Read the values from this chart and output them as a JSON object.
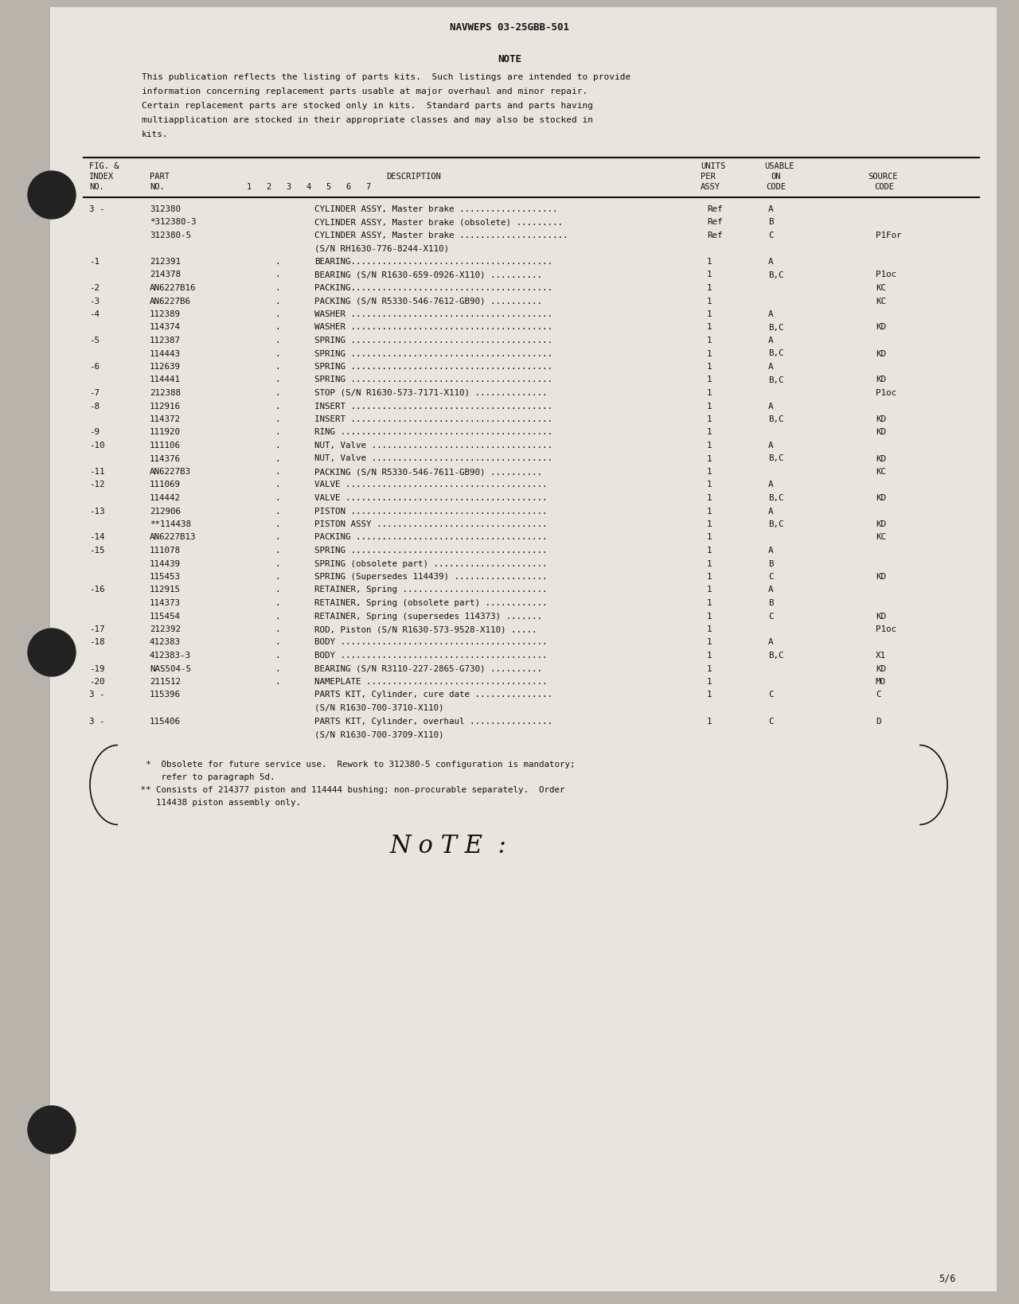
{
  "header_title": "NAVWEPS 03-25GBB-501",
  "note_title": "NOTE",
  "note_text_lines": [
    "This publication reflects the listing of parts kits.  Such listings are intended to provide",
    "information concerning replacement parts usable at major overhaul and minor repair.",
    "Certain replacement parts are stocked only in kits.  Standard parts and parts having",
    "multiapplication are stocked in their appropriate classes and may also be stocked in",
    "kits."
  ],
  "table_rows": [
    [
      "3 -",
      "312380",
      "",
      "CYLINDER ASSY, Master brake ...................",
      "Ref",
      "A",
      "",
      false
    ],
    [
      "",
      "*312380-3",
      "",
      "CYLINDER ASSY, Master brake (obsolete) .........",
      "Ref",
      "B",
      "",
      false
    ],
    [
      "",
      "312380-5",
      "",
      "CYLINDER ASSY, Master brake .....................",
      "Ref",
      "C",
      "P1For",
      false
    ],
    [
      "",
      "",
      "",
      "(S/N RH1630-776-8244-X110)",
      "",
      "",
      "",
      true
    ],
    [
      "-1",
      "212391",
      ".",
      "BEARING.......................................",
      "1",
      "A",
      "",
      false
    ],
    [
      "",
      "214378",
      ".",
      "BEARING (S/N R1630-659-0926-X110) ..........",
      "1",
      "B,C",
      "P1oc",
      false
    ],
    [
      "-2",
      "AN6227B16",
      ".",
      "PACKING.......................................",
      "1",
      "",
      "KC",
      false
    ],
    [
      "-3",
      "AN6227B6",
      ".",
      "PACKING (S/N R5330-546-7612-GB90) ..........",
      "1",
      "",
      "KC",
      false
    ],
    [
      "-4",
      "112389",
      ".",
      "WASHER .......................................",
      "1",
      "A",
      "",
      false
    ],
    [
      "",
      "114374",
      ".",
      "WASHER .......................................",
      "1",
      "B,C",
      "KD",
      false
    ],
    [
      "-5",
      "112387",
      ".",
      "SPRING .......................................",
      "1",
      "A",
      "",
      false
    ],
    [
      "",
      "114443",
      ".",
      "SPRING .......................................",
      "1",
      "B,C",
      "KD",
      false
    ],
    [
      "-6",
      "112639",
      ".",
      "SPRING .......................................",
      "1",
      "A",
      "",
      false
    ],
    [
      "",
      "114441",
      ".",
      "SPRING .......................................",
      "1",
      "B,C",
      "KD",
      false
    ],
    [
      "-7",
      "212388",
      ".",
      "STOP (S/N R1630-573-7171-X110) ..............",
      "1",
      "",
      "P1oc",
      false
    ],
    [
      "-8",
      "112916",
      ".",
      "INSERT .......................................",
      "1",
      "A",
      "",
      false
    ],
    [
      "",
      "114372",
      ".",
      "INSERT .......................................",
      "1",
      "B,C",
      "KD",
      false
    ],
    [
      "-9",
      "111920",
      ".",
      "RING .........................................",
      "1",
      "",
      "KD",
      false
    ],
    [
      "-10",
      "111106",
      ".",
      "NUT, Valve ...................................",
      "1",
      "A",
      "",
      false
    ],
    [
      "",
      "114376",
      ".",
      "NUT, Valve ...................................",
      "1",
      "B,C",
      "KD",
      false
    ],
    [
      "-11",
      "AN6227B3",
      ".",
      "PACKING (S/N R5330-546-7611-GB90) ..........",
      "1",
      "",
      "KC",
      false
    ],
    [
      "-12",
      "111069",
      ".",
      "VALVE .......................................",
      "1",
      "A",
      "",
      false
    ],
    [
      "",
      "114442",
      ".",
      "VALVE .......................................",
      "1",
      "B,C",
      "KD",
      false
    ],
    [
      "-13",
      "212906",
      ".",
      "PISTON ......................................",
      "1",
      "A",
      "",
      false
    ],
    [
      "",
      "**114438",
      ".",
      "PISTON ASSY .................................",
      "1",
      "B,C",
      "KD",
      false
    ],
    [
      "-14",
      "AN6227B13",
      ".",
      "PACKING .....................................",
      "1",
      "",
      "KC",
      false
    ],
    [
      "-15",
      "111078",
      ".",
      "SPRING ......................................",
      "1",
      "A",
      "",
      false
    ],
    [
      "",
      "114439",
      ".",
      "SPRING (obsolete part) ......................",
      "1",
      "B",
      "",
      false
    ],
    [
      "",
      "115453",
      ".",
      "SPRING (Supersedes 114439) ..................",
      "1",
      "C",
      "KD",
      false
    ],
    [
      "-16",
      "112915",
      ".",
      "RETAINER, Spring ............................",
      "1",
      "A",
      "",
      false
    ],
    [
      "",
      "114373",
      ".",
      "RETAINER, Spring (obsolete part) ............",
      "1",
      "B",
      "",
      false
    ],
    [
      "",
      "115454",
      ".",
      "RETAINER, Spring (supersedes 114373) .......",
      "1",
      "C",
      "KD",
      false
    ],
    [
      "-17",
      "212392",
      ".",
      "ROD, Piston (S/N R1630-573-9528-X110) .....",
      "1",
      "",
      "P1oc",
      false
    ],
    [
      "-18",
      "412383",
      ".",
      "BODY ........................................",
      "1",
      "A",
      "",
      false
    ],
    [
      "",
      "412383-3",
      ".",
      "BODY ........................................",
      "1",
      "B,C",
      "X1",
      false
    ],
    [
      "-19",
      "NAS504-5",
      ".",
      "BEARING (S/N R3110-227-2865-G730) ..........",
      "1",
      "",
      "KD",
      false
    ],
    [
      "-20",
      "211512",
      ".",
      "NAMEPLATE ...................................",
      "1",
      "",
      "MO",
      false
    ],
    [
      "3 -",
      "115396",
      "",
      "PARTS KIT, Cylinder, cure date ...............",
      "1",
      "C",
      "C",
      false
    ],
    [
      "",
      "",
      "",
      "(S/N R1630-700-3710-X110)",
      "",
      "",
      "",
      true
    ],
    [
      "3 -",
      "115406",
      "",
      "PARTS KIT, Cylinder, overhaul ................",
      "1",
      "C",
      "D",
      false
    ],
    [
      "",
      "",
      "",
      "(S/N R1630-700-3709-X110)",
      "",
      "",
      "",
      true
    ]
  ],
  "footnote1_lines": [
    "  *  Obsolete for future service use.  Rework to 312380-5 configuration is mandatory;",
    "     refer to paragraph 5d."
  ],
  "footnote2_lines": [
    " ** Consists of 214377 piston and 114444 bushing; non-procurable separately.  Order",
    "    114438 piston assembly only."
  ],
  "page_number": "5/6",
  "paper_color": "#e8e5de",
  "bg_color": "#b8b4ac",
  "text_color": "#111111"
}
